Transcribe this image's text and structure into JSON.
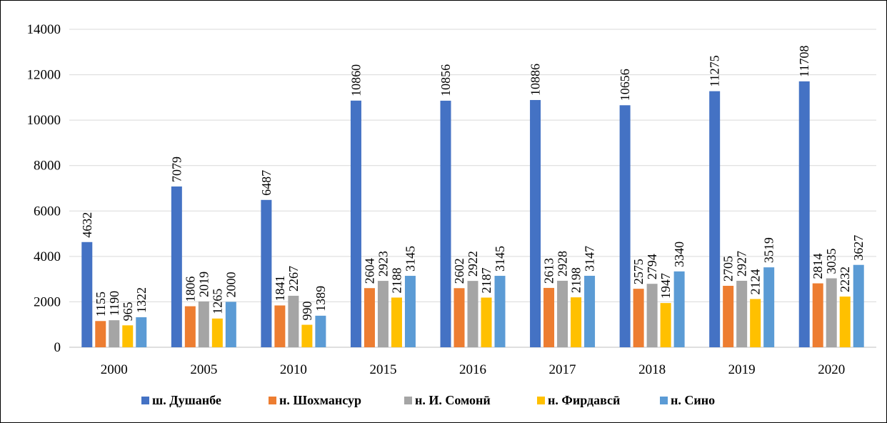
{
  "chart_data": {
    "type": "bar",
    "title": "",
    "xlabel": "",
    "ylabel": "",
    "ylim": [
      0,
      14000
    ],
    "yticks": [
      0,
      2000,
      4000,
      6000,
      8000,
      10000,
      12000,
      14000
    ],
    "grid": true,
    "legend_position": "bottom",
    "categories": [
      "2000",
      "2005",
      "2010",
      "2015",
      "2016",
      "2017",
      "2018",
      "2019",
      "2020"
    ],
    "series": [
      {
        "name": "ш. Душанбе",
        "color": "#4472C4",
        "values": [
          4632,
          7079,
          6487,
          10860,
          10856,
          10886,
          10656,
          11275,
          11708
        ]
      },
      {
        "name": "н. Шохмансур",
        "color": "#ED7D31",
        "values": [
          1155,
          1806,
          1841,
          2604,
          2602,
          2613,
          2575,
          2705,
          2814
        ]
      },
      {
        "name": "н. И. Сомонӣ",
        "color": "#A5A5A5",
        "values": [
          1190,
          2019,
          2267,
          2923,
          2922,
          2928,
          2794,
          2927,
          3035
        ]
      },
      {
        "name": "н. Фирдавсӣ",
        "color": "#FFC000",
        "values": [
          965,
          1265,
          990,
          2188,
          2187,
          2198,
          1947,
          2124,
          2232
        ]
      },
      {
        "name": "н. Сино",
        "color": "#5B9BD5",
        "values": [
          1322,
          2000,
          1389,
          3145,
          3145,
          3147,
          3340,
          3519,
          3627
        ]
      }
    ]
  }
}
